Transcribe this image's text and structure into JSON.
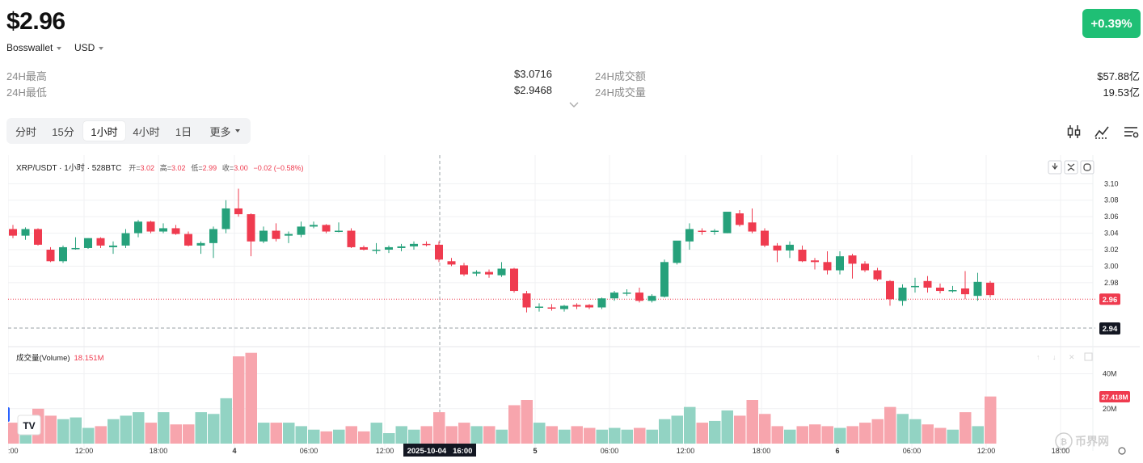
{
  "header": {
    "price": "$2.96",
    "wallet": "Bosswallet",
    "currency": "USD",
    "change": "+0.39%"
  },
  "stats": {
    "high_label": "24H最高",
    "high_value": "$3.0716",
    "low_label": "24H最低",
    "low_value": "$2.9468",
    "turnover_label": "24H成交额",
    "turnover_value": "$57.88亿",
    "volume_label": "24H成交量",
    "volume_value": "19.53亿"
  },
  "timeframes": [
    {
      "label": "分时"
    },
    {
      "label": "15分"
    },
    {
      "label": "1小时"
    },
    {
      "label": "4小时"
    },
    {
      "label": "1日"
    },
    {
      "label": "更多"
    }
  ],
  "active_timeframe": "1小时",
  "icons": [
    "candles-icon",
    "indicator-icon",
    "settings-icon",
    "arrow-down-icon",
    "collapse-icon",
    "reset-icon",
    "tradingview-logo-icon",
    "watermark-logo"
  ],
  "chart_legend": {
    "symbol": "XRP/USDT · 1小时 · 528BTC",
    "open_label": "开=",
    "open": "3.02",
    "high_label": "高=",
    "high": "3.02",
    "low_label": "低=",
    "low": "2.99",
    "close_label": "收=",
    "close": "3.00",
    "change": "−0.02 (−0.58%)"
  },
  "volume_legend": {
    "label": "成交量(Volume)",
    "value": "18.151M"
  },
  "price_tags": {
    "current": "2.96",
    "crosshair": "2.94",
    "volume_current": "27.418M"
  },
  "crosshair_time": "2025-10-04   16:00",
  "watermark": "币界网",
  "colors": {
    "up": "#26a17b",
    "down": "#ef3b4f",
    "up_vol": "#92d3c3",
    "down_vol": "#f7a5ad",
    "badge": "#1fbf75"
  },
  "chart_data": {
    "type": "candlestick",
    "x_ticks": [
      ":00",
      "12:00",
      "18:00",
      "4",
      "06:00",
      "12:00",
      "5",
      "06:00",
      "12:00",
      "18:00",
      "6",
      "06:00",
      "12:00",
      "18:00"
    ],
    "y_ticks": [
      "3.10",
      "3.08",
      "3.06",
      "3.04",
      "3.02",
      "3.00",
      "2.98"
    ],
    "y_range": [
      2.925,
      3.115
    ],
    "volume_ticks": [
      "40M",
      "20M"
    ],
    "volume_range": [
      0,
      50
    ],
    "candles": [
      [
        3.045,
        3.05,
        3.034,
        3.037,
        12
      ],
      [
        3.037,
        3.047,
        3.032,
        3.045,
        11
      ],
      [
        3.045,
        3.046,
        3.025,
        3.026,
        20
      ],
      [
        3.02,
        3.023,
        3.005,
        3.006,
        16
      ],
      [
        3.006,
        3.025,
        3.004,
        3.023,
        14
      ],
      [
        3.021,
        3.035,
        3.02,
        3.022,
        15
      ],
      [
        3.022,
        3.034,
        3.021,
        3.034,
        9
      ],
      [
        3.034,
        3.035,
        3.022,
        3.025,
        10
      ],
      [
        3.023,
        3.03,
        3.015,
        3.025,
        14
      ],
      [
        3.025,
        3.045,
        3.022,
        3.04,
        16
      ],
      [
        3.04,
        3.056,
        3.035,
        3.054,
        18
      ],
      [
        3.054,
        3.055,
        3.04,
        3.042,
        12
      ],
      [
        3.042,
        3.052,
        3.04,
        3.046,
        18
      ],
      [
        3.046,
        3.05,
        3.038,
        3.039,
        11
      ],
      [
        3.039,
        3.042,
        3.024,
        3.025,
        11
      ],
      [
        3.025,
        3.03,
        3.015,
        3.028,
        18
      ],
      [
        3.028,
        3.048,
        3.01,
        3.045,
        17
      ],
      [
        3.045,
        3.08,
        3.04,
        3.07,
        26
      ],
      [
        3.07,
        3.094,
        3.06,
        3.063,
        50
      ],
      [
        3.063,
        3.064,
        3.012,
        3.03,
        52
      ],
      [
        3.03,
        3.048,
        3.028,
        3.043,
        12
      ],
      [
        3.043,
        3.052,
        3.03,
        3.033,
        12
      ],
      [
        3.037,
        3.042,
        3.028,
        3.039,
        12
      ],
      [
        3.038,
        3.054,
        3.035,
        3.048,
        10
      ],
      [
        3.048,
        3.054,
        3.046,
        3.05,
        8
      ],
      [
        3.05,
        3.051,
        3.04,
        3.042,
        7
      ],
      [
        3.042,
        3.053,
        3.041,
        3.043,
        8
      ],
      [
        3.043,
        3.046,
        3.022,
        3.023,
        10
      ],
      [
        3.023,
        3.025,
        3.019,
        3.02,
        7
      ],
      [
        3.019,
        3.028,
        3.015,
        3.02,
        12
      ],
      [
        3.02,
        3.025,
        3.016,
        3.023,
        6
      ],
      [
        3.022,
        3.027,
        3.018,
        3.024,
        10
      ],
      [
        3.024,
        3.03,
        3.02,
        3.027,
        8
      ],
      [
        3.027,
        3.03,
        3.024,
        3.026,
        10
      ],
      [
        3.026,
        3.03,
        3.005,
        3.008,
        18
      ],
      [
        3.006,
        3.01,
        3.0,
        3.002,
        10
      ],
      [
        3.001,
        3.004,
        2.988,
        2.99,
        12
      ],
      [
        2.991,
        2.995,
        2.988,
        2.993,
        10
      ],
      [
        2.993,
        2.996,
        2.986,
        2.99,
        10
      ],
      [
        2.989,
        3.005,
        2.987,
        2.997,
        8
      ],
      [
        2.997,
        2.998,
        2.968,
        2.97,
        22
      ],
      [
        2.967,
        2.97,
        2.944,
        2.95,
        25
      ],
      [
        2.95,
        2.955,
        2.945,
        2.951,
        12
      ],
      [
        2.95,
        2.954,
        2.946,
        2.949,
        10
      ],
      [
        2.948,
        2.953,
        2.945,
        2.952,
        8
      ],
      [
        2.953,
        2.955,
        2.948,
        2.951,
        10
      ],
      [
        2.953,
        2.954,
        2.948,
        2.95,
        9
      ],
      [
        2.95,
        2.962,
        2.948,
        2.961,
        8
      ],
      [
        2.961,
        2.97,
        2.958,
        2.968,
        9
      ],
      [
        2.968,
        2.972,
        2.964,
        2.968,
        8
      ],
      [
        2.968,
        2.974,
        2.956,
        2.958,
        9
      ],
      [
        2.958,
        2.966,
        2.956,
        2.964,
        8
      ],
      [
        2.963,
        3.008,
        2.962,
        3.005,
        14
      ],
      [
        3.004,
        3.03,
        3.002,
        3.031,
        16
      ],
      [
        3.03,
        3.052,
        3.02,
        3.045,
        21
      ],
      [
        3.043,
        3.046,
        3.038,
        3.042,
        12
      ],
      [
        3.042,
        3.045,
        3.038,
        3.043,
        13
      ],
      [
        3.04,
        3.065,
        3.04,
        3.066,
        19
      ],
      [
        3.064,
        3.068,
        3.048,
        3.05,
        16
      ],
      [
        3.053,
        3.07,
        3.04,
        3.042,
        25
      ],
      [
        3.043,
        3.046,
        3.023,
        3.025,
        17
      ],
      [
        3.025,
        3.028,
        3.005,
        3.019,
        10
      ],
      [
        3.019,
        3.03,
        3.01,
        3.026,
        8
      ],
      [
        3.02,
        3.025,
        3.005,
        3.006,
        10
      ],
      [
        3.007,
        3.01,
        2.996,
        3.005,
        11
      ],
      [
        3.005,
        3.018,
        2.99,
        2.995,
        10
      ],
      [
        2.995,
        3.018,
        2.99,
        3.012,
        9
      ],
      [
        3.013,
        3.015,
        2.985,
        3.003,
        10
      ],
      [
        3.003,
        3.006,
        2.993,
        2.995,
        12
      ],
      [
        2.995,
        2.998,
        2.982,
        2.984,
        14
      ],
      [
        2.982,
        2.983,
        2.952,
        2.96,
        21
      ],
      [
        2.958,
        2.978,
        2.952,
        2.974,
        17
      ],
      [
        2.975,
        2.986,
        2.968,
        2.976,
        14
      ],
      [
        2.982,
        2.988,
        2.968,
        2.974,
        11
      ],
      [
        2.974,
        2.979,
        2.967,
        2.97,
        9
      ],
      [
        2.97,
        2.976,
        2.968,
        2.971,
        8
      ],
      [
        2.973,
        2.994,
        2.96,
        2.966,
        18
      ],
      [
        2.964,
        2.992,
        2.958,
        2.981,
        10
      ],
      [
        2.98,
        2.982,
        2.962,
        2.965,
        27
      ]
    ]
  }
}
